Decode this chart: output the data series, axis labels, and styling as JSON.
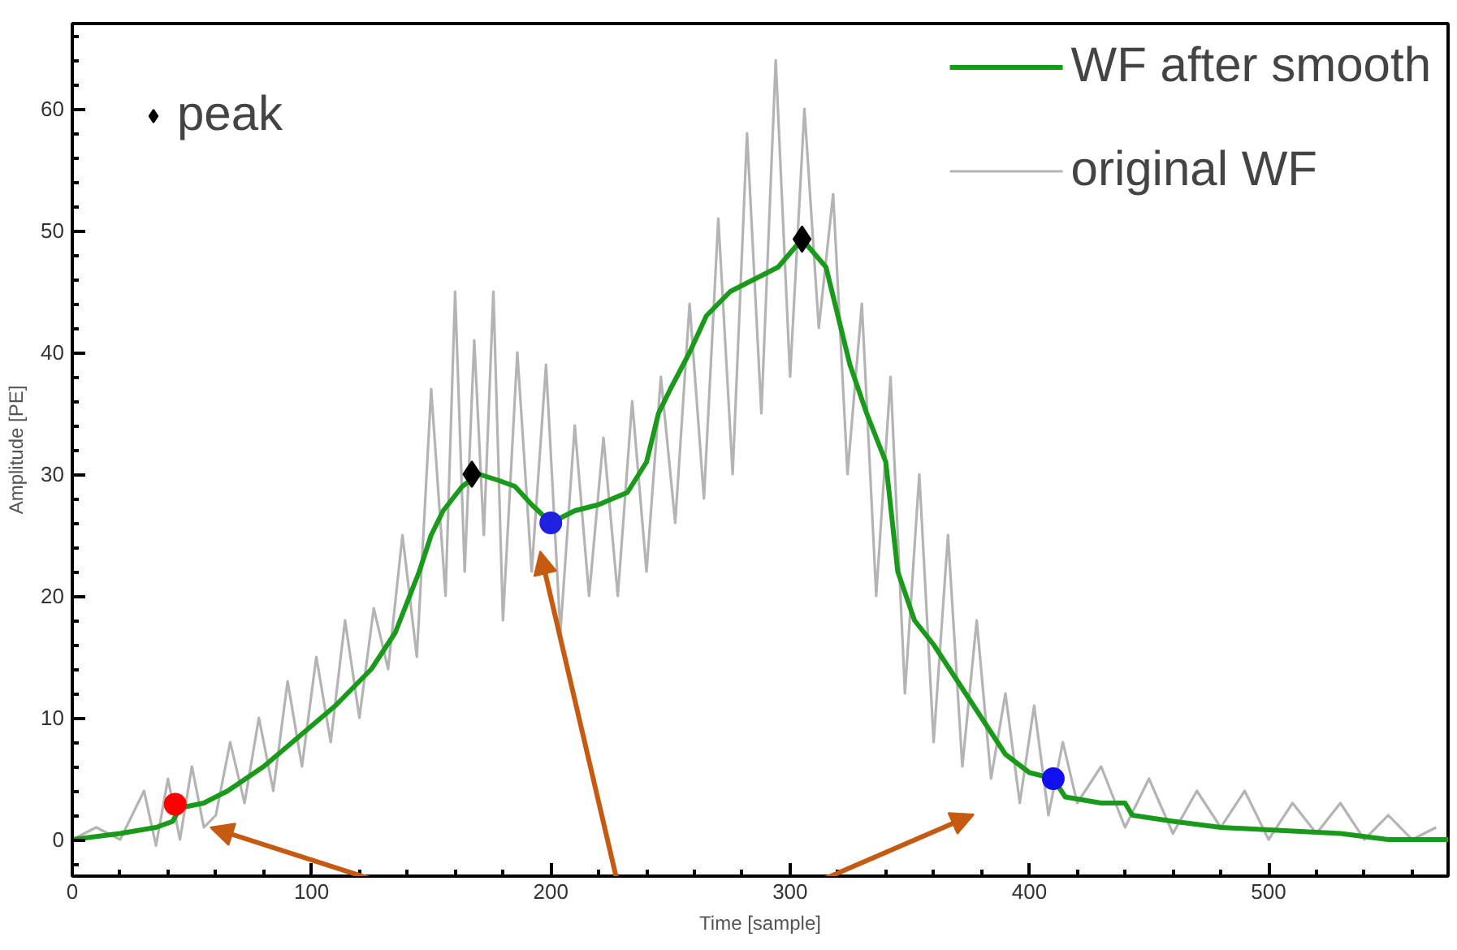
{
  "chart_data": {
    "type": "line",
    "xlabel": "Time [sample]",
    "ylabel": "Amplitude [PE]",
    "xlim": [
      0,
      575
    ],
    "ylim": [
      -3,
      67
    ],
    "xticks": [
      0,
      100,
      200,
      300,
      400,
      500
    ],
    "yticks": [
      0,
      10,
      20,
      30,
      40,
      50,
      60
    ],
    "grid": false,
    "legend": "top right",
    "line_style": "solid",
    "series": [
      {
        "name": "original WF",
        "color": "#b4b4b4",
        "x": [
          0,
          10,
          20,
          30,
          35,
          40,
          45,
          50,
          55,
          60,
          66,
          72,
          78,
          84,
          90,
          96,
          102,
          108,
          114,
          120,
          126,
          132,
          138,
          144,
          150,
          156,
          160,
          164,
          168,
          172,
          176,
          180,
          186,
          192,
          198,
          204,
          210,
          216,
          222,
          228,
          234,
          240,
          246,
          252,
          258,
          264,
          270,
          276,
          282,
          288,
          294,
          300,
          306,
          312,
          318,
          324,
          330,
          336,
          342,
          348,
          354,
          360,
          366,
          372,
          378,
          384,
          390,
          396,
          402,
          408,
          414,
          420,
          430,
          440,
          450,
          460,
          470,
          480,
          490,
          500,
          510,
          520,
          530,
          540,
          550,
          560,
          570
        ],
        "values": [
          0,
          1,
          0,
          4,
          -0.5,
          5,
          0,
          6,
          1,
          2,
          8,
          3,
          10,
          4,
          13,
          6,
          15,
          8,
          18,
          10,
          19,
          14,
          25,
          15,
          37,
          20,
          45,
          22,
          41,
          25,
          45,
          18,
          40,
          22,
          39,
          17,
          34,
          20,
          33,
          20,
          36,
          22,
          38,
          26,
          44,
          28,
          51,
          30,
          58,
          35,
          64,
          38,
          60,
          42,
          53,
          30,
          44,
          20,
          38,
          12,
          30,
          8,
          25,
          6,
          18,
          5,
          12,
          3,
          11,
          2,
          8,
          3,
          6,
          1,
          5,
          0.5,
          4,
          1,
          4,
          0,
          3,
          0.5,
          3,
          0,
          2,
          0,
          1
        ]
      },
      {
        "name": "WF after smooth",
        "color": "#1a9a1a",
        "x": [
          0,
          20,
          35,
          42,
          45,
          55,
          65,
          80,
          95,
          110,
          125,
          135,
          145,
          150,
          155,
          163,
          170,
          178,
          185,
          192,
          200,
          210,
          220,
          232,
          240,
          245,
          250,
          258,
          265,
          275,
          285,
          295,
          305,
          315,
          320,
          325,
          332,
          340,
          345,
          352,
          360,
          370,
          380,
          390,
          400,
          410,
          415,
          430,
          440,
          443,
          460,
          480,
          500,
          530,
          550,
          575
        ],
        "values": [
          0,
          0.5,
          1,
          1.5,
          2.6,
          3,
          4,
          6,
          8.5,
          11,
          14,
          17,
          22,
          25,
          27,
          29,
          30,
          29.5,
          29,
          27.5,
          26,
          27,
          27.5,
          28.5,
          31,
          35,
          37,
          40,
          43,
          45,
          46,
          47,
          49.3,
          47,
          43,
          39,
          35,
          31,
          22,
          18,
          16,
          13,
          10,
          7,
          5.5,
          5,
          3.5,
          3,
          3,
          2,
          1.5,
          1,
          0.8,
          0.5,
          0,
          0
        ]
      },
      {
        "type": "scatter",
        "marker": "diamond",
        "name": "peak",
        "color": "#000000",
        "x": [
          167,
          305
        ],
        "values": [
          30,
          49.3
        ]
      },
      {
        "type": "scatter",
        "marker": "circle",
        "colors": [
          "#ff0000",
          "#2020e0",
          "#1010f0"
        ],
        "x": [
          43,
          200,
          410
        ],
        "values": [
          2.9,
          26,
          5
        ]
      }
    ]
  }
}
